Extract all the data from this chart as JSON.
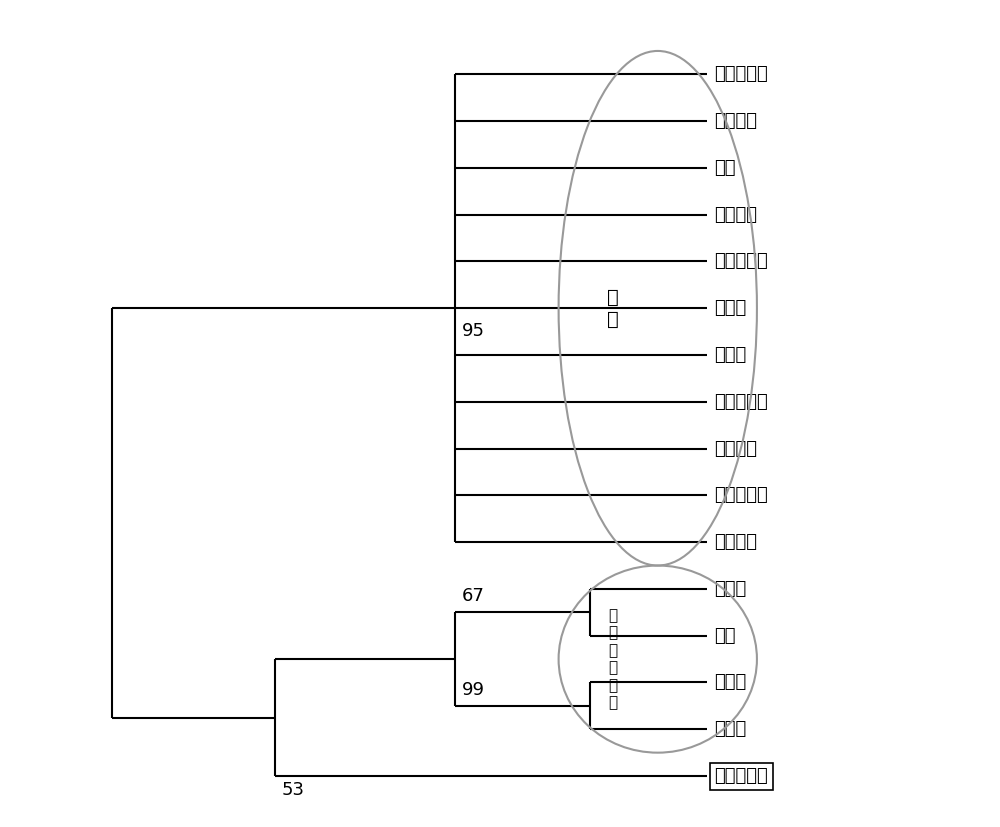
{
  "taxa": [
    "博爱八月黄",
    "富平尖柿",
    "富有",
    "恭城月柿",
    "海安小方柿",
    "磨盘柿",
    "小萊子",
    "休宁扁塌柿",
    "玉环长柿",
    "诀安元宵柿",
    "中柿一号",
    "金枣柿",
    "油柿",
    "君迁子",
    "浙江柿",
    "云南野毛柿"
  ],
  "line_color": "#000000",
  "ellipse_color": "#999999",
  "bg_color": "#ffffff",
  "font_size": 13,
  "bootstrap_font_size": 13,
  "lw": 1.5
}
